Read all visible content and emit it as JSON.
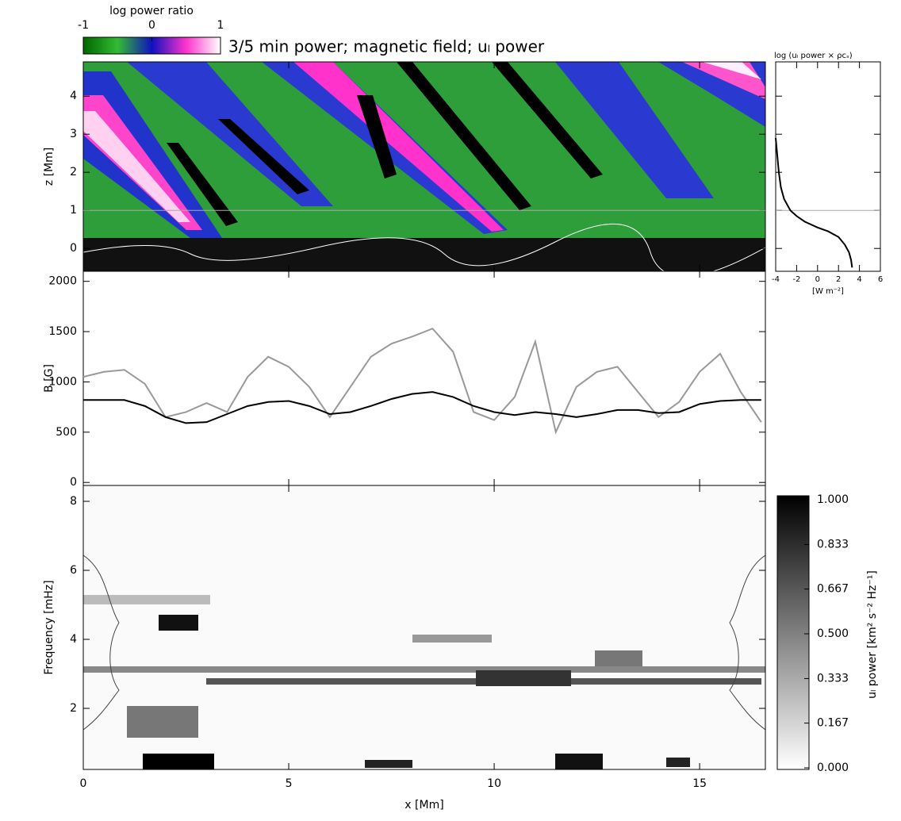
{
  "chart_data": [
    {
      "type": "heatmap",
      "title": "3/5 min power; magnetic field; uₗ power",
      "ylabel": "z [Mm]",
      "xlim": [
        0,
        16.6
      ],
      "xticks": [
        0,
        5,
        10,
        15
      ],
      "ylim": [
        -0.6,
        4.9
      ],
      "yticks": [
        0,
        1,
        2,
        3,
        4
      ],
      "hline": 1,
      "colorbar": {
        "label": "log power ratio",
        "lim": [
          -1,
          1
        ],
        "ticks": [
          -1,
          0,
          1
        ]
      }
    },
    {
      "type": "line",
      "title": "log (uₗ power × ρcₛ)",
      "xlabel": "[W m⁻²]",
      "xlim": [
        -4,
        6
      ],
      "xticks": [
        -4,
        -2,
        0,
        2,
        4,
        6
      ],
      "ylim": [
        -0.6,
        4.9
      ],
      "yticks": [
        0,
        1,
        2,
        3,
        4
      ],
      "hline": 1,
      "x": [
        3.3,
        3.2,
        3.0,
        2.6,
        2.0,
        1.0,
        0.0,
        -1.2,
        -2.0,
        -2.6,
        -3.2,
        -3.5,
        -3.7,
        -3.8,
        -3.9,
        -4.0
      ],
      "series": [
        {
          "color": "#000000",
          "values": [
            -0.5,
            -0.3,
            -0.1,
            0.1,
            0.3,
            0.45,
            0.55,
            0.7,
            0.85,
            1.0,
            1.3,
            1.6,
            2.0,
            2.3,
            2.6,
            2.9
          ]
        }
      ]
    },
    {
      "type": "line",
      "ylabel": "B [G]",
      "xlim": [
        0,
        16.6
      ],
      "xticks": [
        0,
        5,
        10,
        15
      ],
      "ylim": [
        -30,
        2100
      ],
      "yticks": [
        0,
        500,
        1000,
        1500,
        2000
      ],
      "x": [
        0,
        0.5,
        1,
        1.5,
        2,
        2.5,
        3,
        3.5,
        4,
        4.5,
        5,
        5.5,
        6,
        6.5,
        7,
        7.5,
        8,
        8.5,
        9,
        9.5,
        10,
        10.5,
        11,
        11.5,
        12,
        12.5,
        13,
        13.5,
        14,
        14.5,
        15,
        15.5,
        16,
        16.5
      ],
      "series": [
        {
          "color": "#999999",
          "values": [
            1050,
            1100,
            1120,
            980,
            650,
            700,
            790,
            700,
            1050,
            1250,
            1150,
            950,
            650,
            950,
            1250,
            1380,
            1450,
            1530,
            1300,
            700,
            620,
            850,
            1400,
            500,
            950,
            1100,
            1150,
            900,
            650,
            800,
            1100,
            1280,
            900,
            600
          ]
        },
        {
          "color": "#000000",
          "values": [
            820,
            820,
            820,
            760,
            650,
            590,
            600,
            680,
            760,
            800,
            810,
            760,
            680,
            700,
            760,
            830,
            880,
            900,
            850,
            760,
            700,
            670,
            700,
            680,
            650,
            680,
            720,
            720,
            690,
            700,
            780,
            810,
            820,
            820
          ]
        }
      ]
    },
    {
      "type": "heatmap",
      "ylabel": "Frequency [mHz]",
      "xlabel": "x [Mm]",
      "xlim": [
        0,
        16.6
      ],
      "xticks": [
        0,
        5,
        10,
        15
      ],
      "ylim": [
        0.23,
        8.46
      ],
      "yticks": [
        2,
        4,
        6,
        8
      ],
      "colorbar": {
        "label": "uₗ power [km² s⁻² Hz⁻¹]",
        "lim": [
          0,
          1
        ],
        "ticks": [
          {
            "value": 0,
            "label": "0.000"
          },
          {
            "value": 0.167,
            "label": "0.167"
          },
          {
            "value": 0.333,
            "label": "0.333"
          },
          {
            "value": 0.5,
            "label": "0.500"
          },
          {
            "value": 0.667,
            "label": "0.667"
          },
          {
            "value": 0.833,
            "label": "0.833"
          },
          {
            "value": 1,
            "label": "1.000"
          }
        ]
      }
    }
  ]
}
